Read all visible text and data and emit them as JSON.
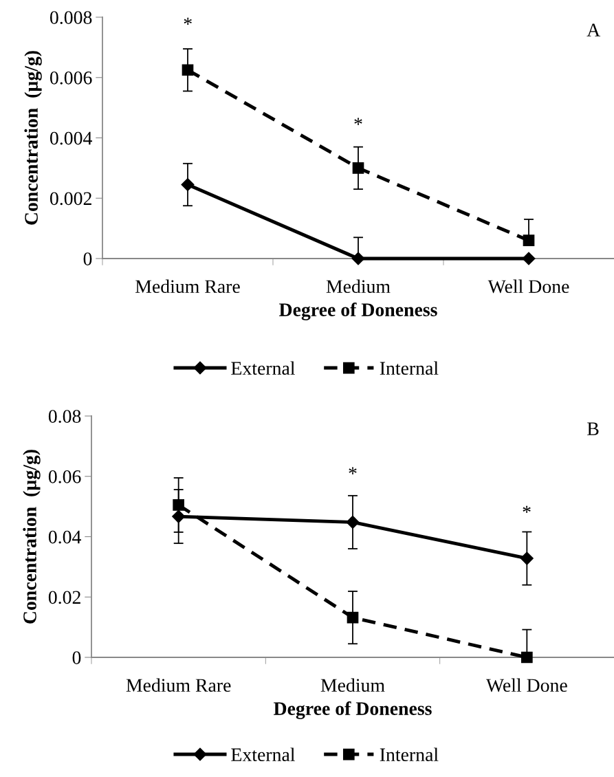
{
  "chart_data": [
    {
      "type": "line",
      "categories": [
        "Medium Rare",
        "Medium",
        "Well Done"
      ],
      "xlabel": "Degree of Doneness",
      "ylabel": "Concentration  (µg/g)",
      "ylim": [
        0,
        0.008
      ],
      "yticks": [
        {
          "value": 0,
          "label": "0"
        },
        0.002,
        0.004,
        0.006,
        0.008
      ],
      "grid": false,
      "legend": "bottom",
      "series": [
        {
          "name": "External",
          "color": "#000000",
          "marker": "diamond",
          "line_style": "solid",
          "values": [
            0.00245,
            0,
            0
          ],
          "errors": [
            0.0007,
            [
              0,
              0.0007
            ],
            null
          ]
        },
        {
          "name": "Internal",
          "color": "#000000",
          "marker": "square",
          "line_style": "dashed",
          "values": [
            0.00625,
            0.003,
            0.0006
          ],
          "errors": [
            0.0007,
            0.0007,
            [
              0.0006,
              0.0013
            ]
          ]
        }
      ],
      "annotations": [
        "A",
        "*",
        "*"
      ]
    },
    {
      "type": "line",
      "categories": [
        "Medium Rare",
        "Medium",
        "Well Done"
      ],
      "xlabel": "Degree of Doneness",
      "ylabel": "Concentration  (µg/g)",
      "ylim": [
        0,
        0.08
      ],
      "yticks": [
        {
          "value": 0,
          "label": "0"
        },
        0.02,
        0.04,
        0.06,
        0.08
      ],
      "grid": false,
      "legend": "bottom",
      "series": [
        {
          "name": "External",
          "color": "#000000",
          "marker": "diamond",
          "line_style": "solid",
          "values": [
            0.0467,
            0.0448,
            0.0328
          ],
          "errors": [
            0.0089,
            0.0088,
            0.0088
          ]
        },
        {
          "name": "Internal",
          "color": "#000000",
          "marker": "square",
          "line_style": "dashed",
          "values": [
            0.0505,
            0.0132,
            0
          ],
          "errors": [
            0.009,
            0.0087,
            [
              0,
              0.0092
            ]
          ]
        }
      ],
      "annotations": [
        "B",
        "*",
        "*"
      ]
    }
  ]
}
